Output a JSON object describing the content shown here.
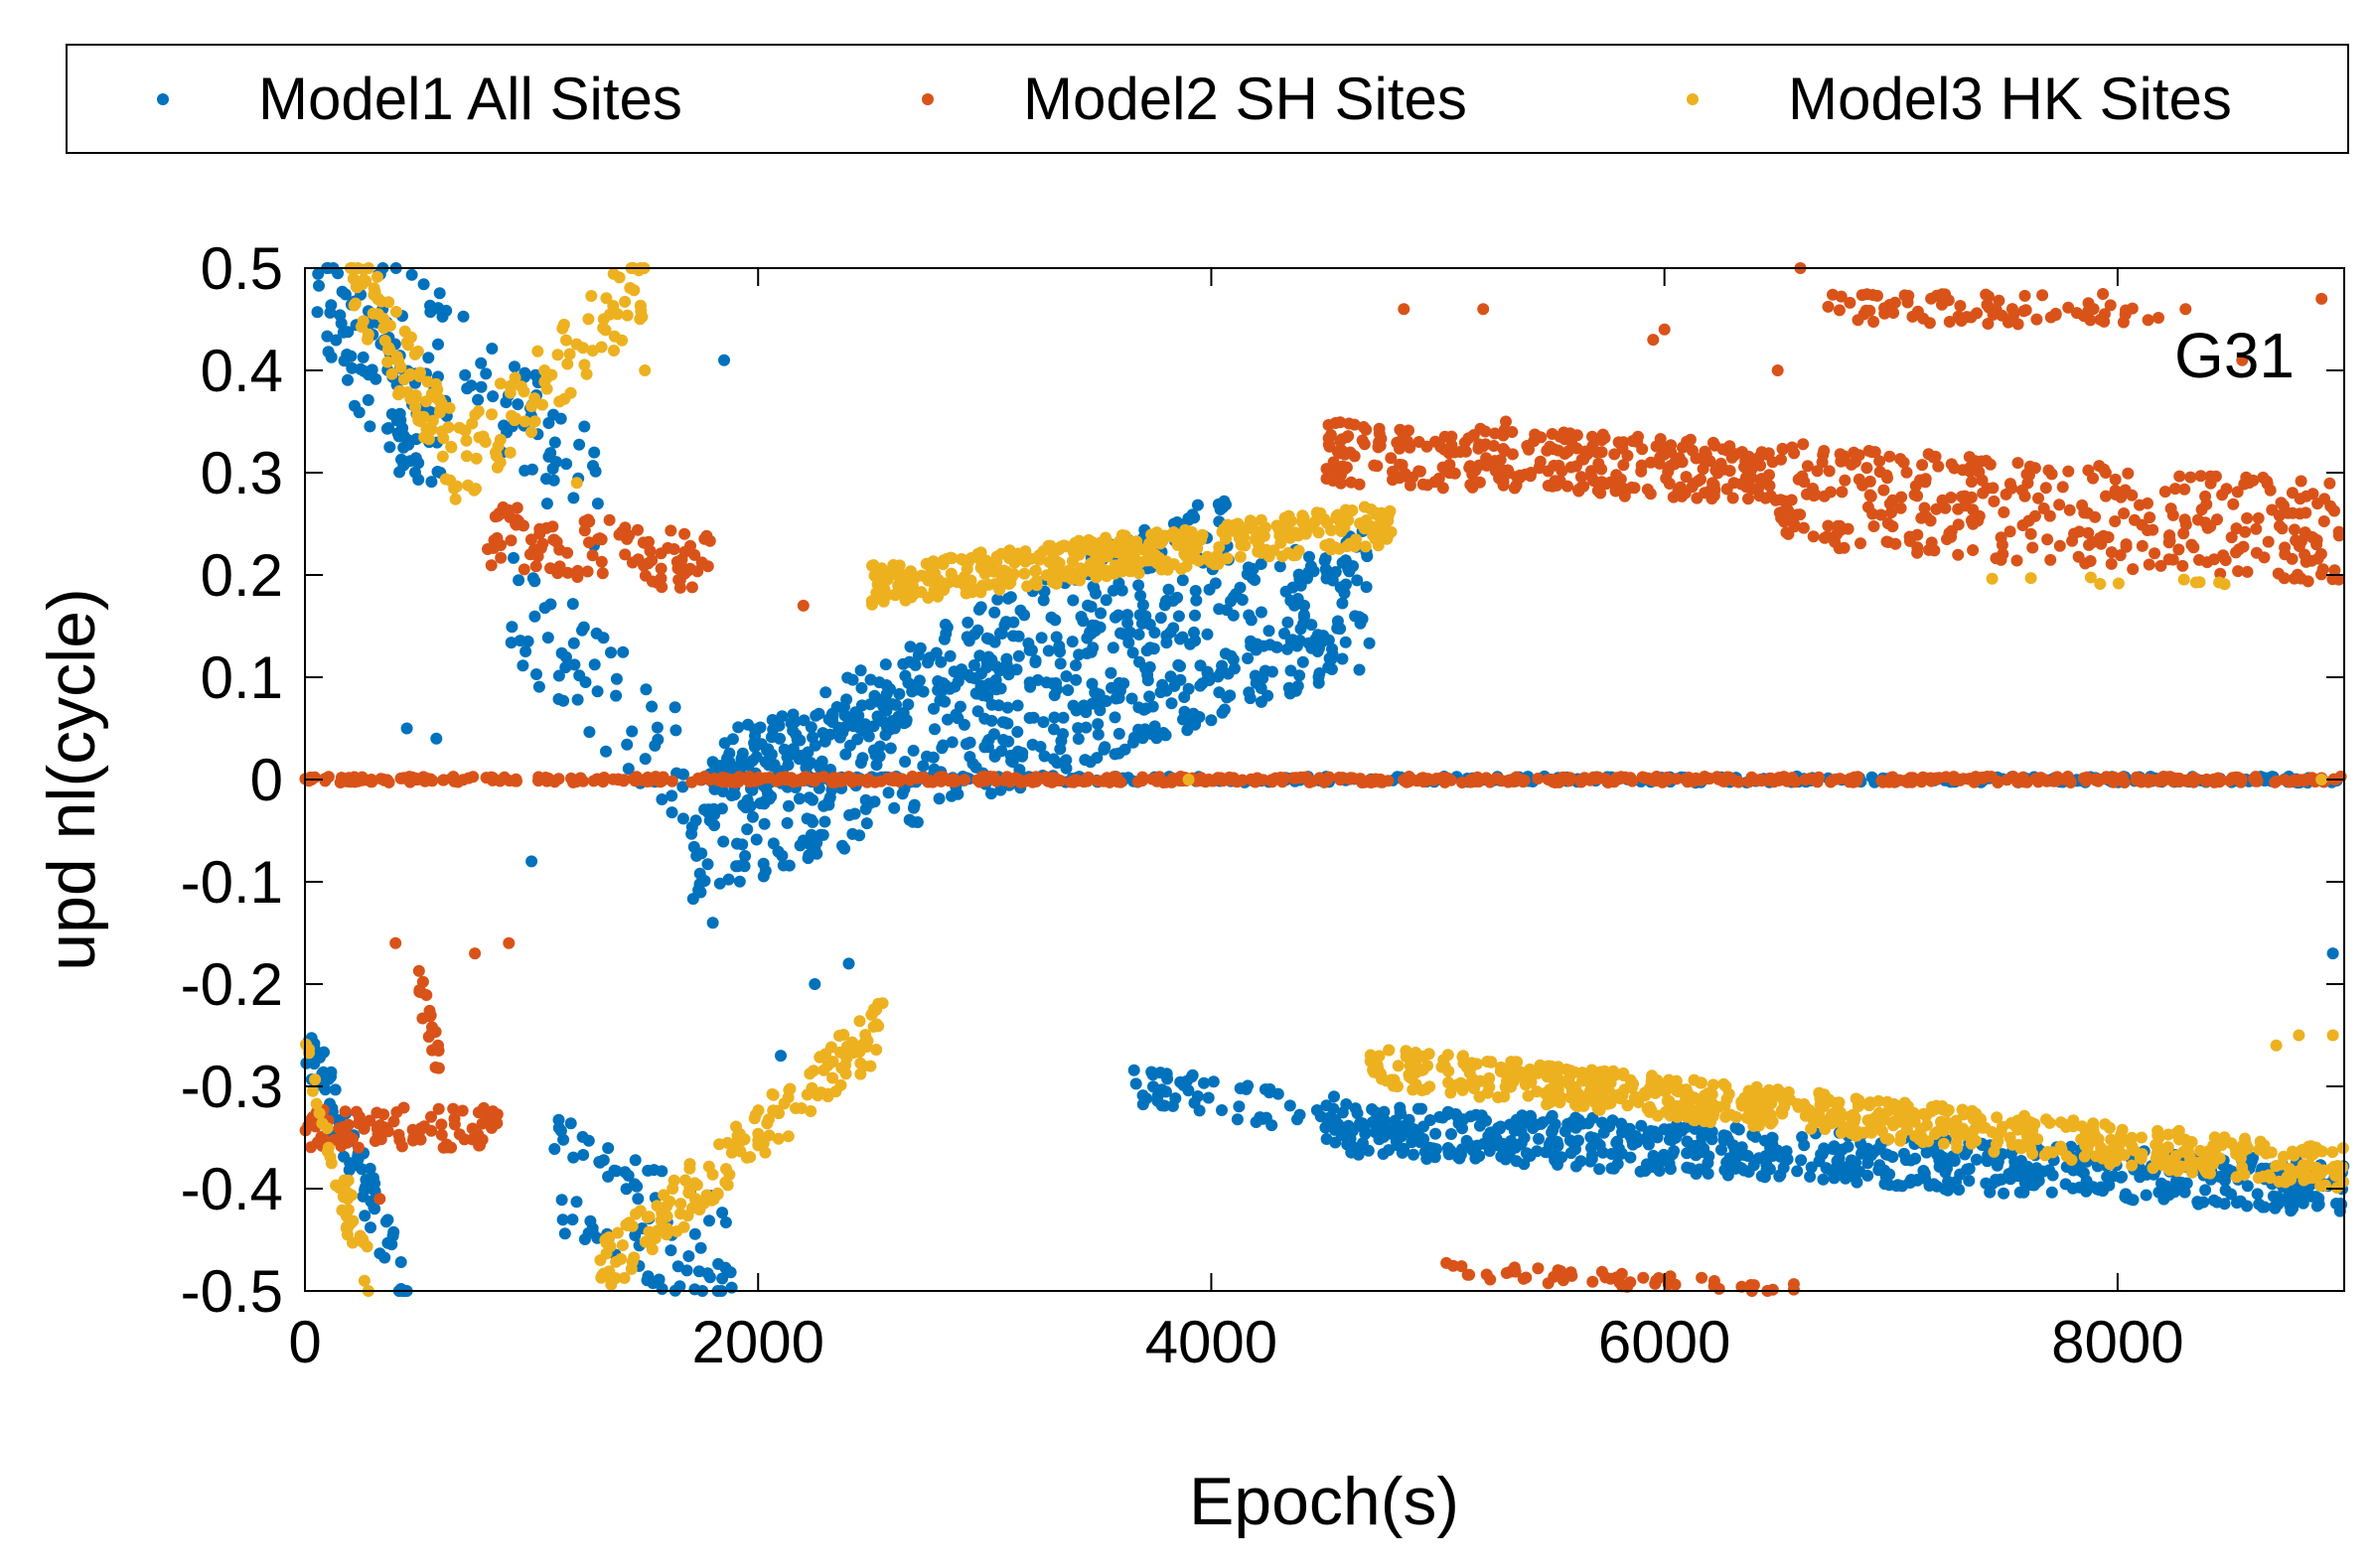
{
  "chart_data": {
    "type": "scatter",
    "title": "",
    "annotation": "G31",
    "xlabel": "Epoch(s)",
    "ylabel": "upd nl(cycle)",
    "xlim": [
      0,
      9000
    ],
    "ylim": [
      -0.5,
      0.5
    ],
    "xticks": [
      0,
      2000,
      4000,
      6000,
      8000
    ],
    "xtick_labels": [
      "0",
      "2000",
      "4000",
      "6000",
      "8000"
    ],
    "yticks": [
      0.5,
      0.4,
      0.3,
      0.2,
      0.1,
      0,
      -0.1,
      -0.2,
      -0.3,
      -0.4,
      -0.5
    ],
    "ytick_labels": [
      "0.5",
      "0.4",
      "0.3",
      "0.2",
      "0.1",
      "0",
      "-0.1",
      "-0.2",
      "-0.3",
      "-0.4",
      "-0.5"
    ],
    "legend_position": "top-outside",
    "series": [
      {
        "name": "Model1 All Sites",
        "color": "#0072bd",
        "segments": [
          {
            "x0": 50,
            "x1": 600,
            "y0": 0.48,
            "y1": 0.3,
            "spread": 0.06,
            "n": 90
          },
          {
            "x0": 300,
            "x1": 1300,
            "y0": 0.48,
            "y1": 0.28,
            "spread": 0.06,
            "n": 80
          },
          {
            "x0": 900,
            "x1": 1700,
            "y0": 0.18,
            "y1": 0.0,
            "spread": 0.06,
            "n": 60
          },
          {
            "x0": 1700,
            "x1": 4700,
            "y0": -0.05,
            "y1": 0.18,
            "spread": 0.07,
            "n": 600
          },
          {
            "x0": 1800,
            "x1": 4100,
            "y0": 0.0,
            "y1": 0.25,
            "spread": 0.04,
            "n": 250
          },
          {
            "x0": 1700,
            "x1": 9000,
            "y0": 0.0,
            "y1": 0.0,
            "spread": 0.003,
            "n": 300
          },
          {
            "x0": 0,
            "x1": 450,
            "y0": -0.25,
            "y1": -0.5,
            "spread": 0.03,
            "n": 80
          },
          {
            "x0": 1100,
            "x1": 1900,
            "y0": -0.38,
            "y1": -0.48,
            "spread": 0.06,
            "n": 80
          },
          {
            "x0": 3600,
            "x1": 4700,
            "y0": -0.3,
            "y1": -0.33,
            "spread": 0.02,
            "n": 60
          },
          {
            "x0": 4500,
            "x1": 9000,
            "y0": -0.34,
            "y1": -0.4,
            "spread": 0.025,
            "n": 700
          }
        ],
        "points": [
          [
            1800,
            -0.14
          ],
          [
            2400,
            -0.18
          ],
          [
            1000,
            -0.08
          ],
          [
            450,
            0.05
          ],
          [
            580,
            0.04
          ],
          [
            8950,
            -0.17
          ],
          [
            2100,
            -0.27
          ],
          [
            2250,
            -0.2
          ],
          [
            1850,
            0.41
          ]
        ]
      },
      {
        "name": "Model2 SH Sites",
        "color": "#d95319",
        "segments": [
          {
            "x0": 800,
            "x1": 1800,
            "y0": 0.24,
            "y1": 0.21,
            "spread": 0.03,
            "n": 110
          },
          {
            "x0": 4500,
            "x1": 6500,
            "y0": 0.32,
            "y1": 0.3,
            "spread": 0.03,
            "n": 320
          },
          {
            "x0": 6500,
            "x1": 9000,
            "y0": 0.28,
            "y1": 0.24,
            "spread": 0.05,
            "n": 360
          },
          {
            "x0": 6700,
            "x1": 8200,
            "y0": 0.46,
            "y1": 0.46,
            "spread": 0.015,
            "n": 80
          },
          {
            "x0": 0,
            "x1": 9000,
            "y0": 0.0,
            "y1": 0.0,
            "spread": 0.003,
            "n": 700
          },
          {
            "x0": 0,
            "x1": 850,
            "y0": -0.34,
            "y1": -0.34,
            "spread": 0.02,
            "n": 90
          },
          {
            "x0": 500,
            "x1": 620,
            "y0": -0.2,
            "y1": -0.3,
            "spread": 0.02,
            "n": 20
          },
          {
            "x0": 5000,
            "x1": 6600,
            "y0": -0.48,
            "y1": -0.5,
            "spread": 0.008,
            "n": 50
          }
        ],
        "points": [
          [
            4850,
            0.46
          ],
          [
            5200,
            0.46
          ],
          [
            5300,
            0.35
          ],
          [
            5950,
            0.43
          ],
          [
            6000,
            0.44
          ],
          [
            6500,
            0.4
          ],
          [
            6600,
            0.5
          ],
          [
            2200,
            0.17
          ],
          [
            8300,
            0.46
          ],
          [
            8900,
            0.47
          ],
          [
            8550,
            0.41
          ],
          [
            400,
            -0.16
          ],
          [
            750,
            -0.17
          ],
          [
            900,
            -0.16
          ],
          [
            330,
            -0.41
          ]
        ]
      },
      {
        "name": "Model3 HK Sites",
        "color": "#edb120",
        "segments": [
          {
            "x0": 200,
            "x1": 650,
            "y0": 0.5,
            "y1": 0.32,
            "spread": 0.04,
            "n": 90
          },
          {
            "x0": 650,
            "x1": 1500,
            "y0": 0.3,
            "y1": 0.49,
            "spread": 0.04,
            "n": 90
          },
          {
            "x0": 2500,
            "x1": 4800,
            "y0": 0.19,
            "y1": 0.25,
            "spread": 0.02,
            "n": 420
          },
          {
            "x0": 0,
            "x1": 300,
            "y0": -0.28,
            "y1": -0.5,
            "spread": 0.03,
            "n": 40
          },
          {
            "x0": 1300,
            "x1": 2550,
            "y0": -0.48,
            "y1": -0.24,
            "spread": 0.03,
            "n": 170
          },
          {
            "x0": 4700,
            "x1": 9000,
            "y0": -0.28,
            "y1": -0.38,
            "spread": 0.02,
            "n": 700
          },
          {
            "x0": 7400,
            "x1": 8500,
            "y0": 0.2,
            "y1": 0.19,
            "spread": 0.005,
            "n": 10
          }
        ],
        "points": [
          [
            3900,
            0.0
          ],
          [
            8900,
            0.0
          ],
          [
            8700,
            -0.26
          ],
          [
            8800,
            -0.25
          ],
          [
            8950,
            -0.25
          ],
          [
            1500,
            0.4
          ],
          [
            2500,
            -0.23
          ],
          [
            1200,
            0.29
          ]
        ]
      }
    ]
  }
}
